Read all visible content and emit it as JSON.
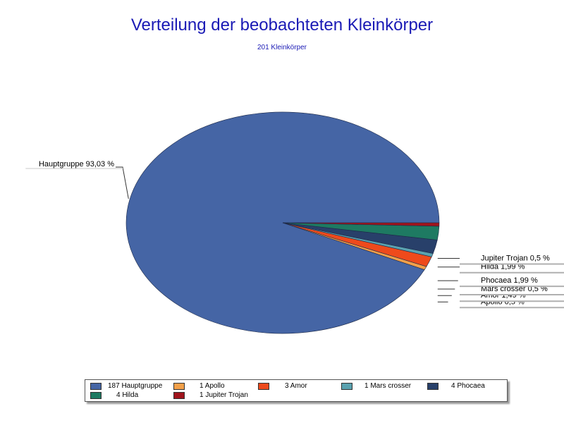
{
  "chart_data": {
    "type": "pie",
    "title": "Verteilung der beobachteten Kleinkörper",
    "subtitle": "201 Kleinkörper",
    "slices": [
      {
        "name": "Hauptgruppe",
        "count": 187,
        "percent": 93.03,
        "label": "Hauptgruppe 93,03 %",
        "legend": "187 Hauptgruppe",
        "color": "#4565a5"
      },
      {
        "name": "Apollo",
        "count": 1,
        "percent": 0.5,
        "label": "Apollo 0,5 %",
        "legend": "1 Apollo",
        "color": "#f2a04a"
      },
      {
        "name": "Amor",
        "count": 3,
        "percent": 1.49,
        "label": "Amor 1,49 %",
        "legend": "3 Amor",
        "color": "#ee4a1c"
      },
      {
        "name": "Mars crosser",
        "count": 1,
        "percent": 0.5,
        "label": "Mars crosser 0,5 %",
        "legend": "1 Mars crosser",
        "color": "#5aa2b0"
      },
      {
        "name": "Phocaea",
        "count": 4,
        "percent": 1.99,
        "label": "Phocaea 1,99 %",
        "legend": "4 Phocaea",
        "color": "#28406a"
      },
      {
        "name": "Hilda",
        "count": 4,
        "percent": 1.99,
        "label": "Hilda 1,99 %",
        "legend": "4 Hilda",
        "color": "#1e7a62"
      },
      {
        "name": "Jupiter Trojan",
        "count": 1,
        "percent": 0.5,
        "label": "Jupiter Trojan 0,5 %",
        "legend": "1 Jupiter Trojan",
        "color": "#a0141c"
      }
    ],
    "legend_position": "bottom"
  }
}
